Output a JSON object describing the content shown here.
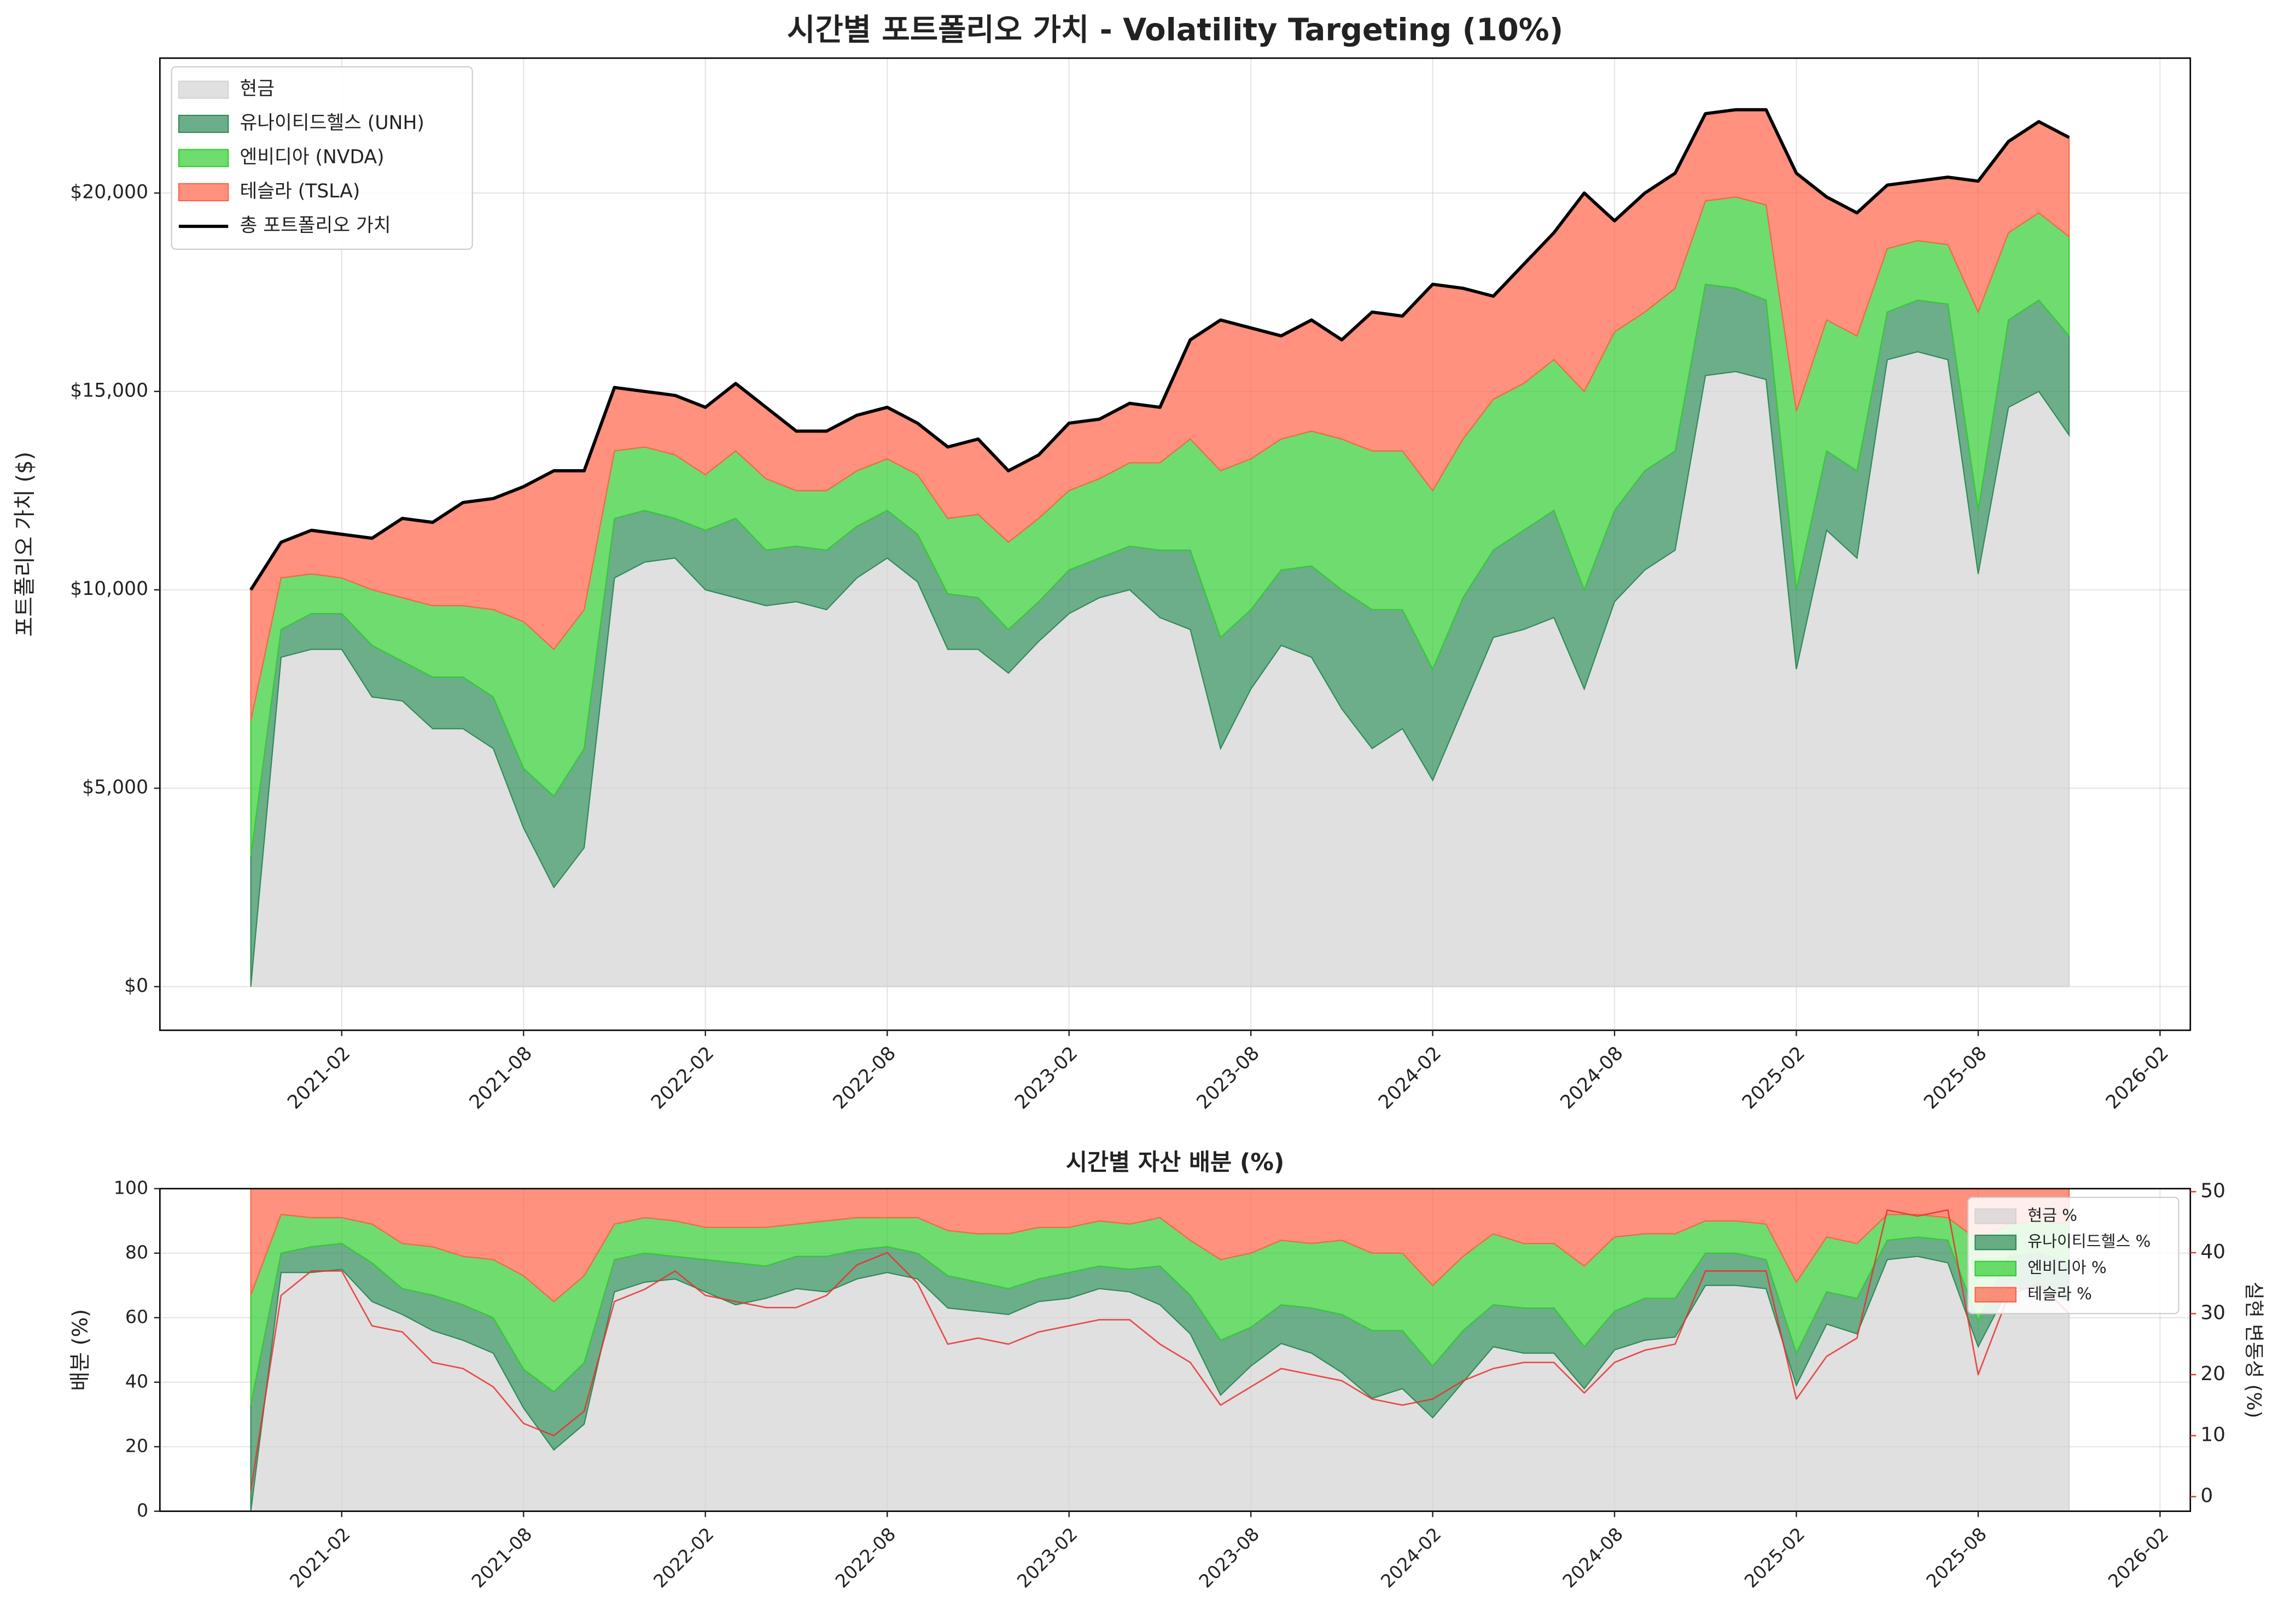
{
  "chart_data": [
    {
      "type": "area",
      "title": "시간별 포트폴리오 가치 - Volatility Targeting (10%)",
      "ylabel": "포트폴리오 가치 ($)",
      "x": [
        "2020-11",
        "2020-12",
        "2021-01",
        "2021-02",
        "2021-03",
        "2021-04",
        "2021-05",
        "2021-06",
        "2021-07",
        "2021-08",
        "2021-09",
        "2021-10",
        "2021-11",
        "2021-12",
        "2022-01",
        "2022-02",
        "2022-03",
        "2022-04",
        "2022-05",
        "2022-06",
        "2022-07",
        "2022-08",
        "2022-09",
        "2022-10",
        "2022-11",
        "2022-12",
        "2023-01",
        "2023-02",
        "2023-03",
        "2023-04",
        "2023-05",
        "2023-06",
        "2023-07",
        "2023-08",
        "2023-09",
        "2023-10",
        "2023-11",
        "2023-12",
        "2024-01",
        "2024-02",
        "2024-03",
        "2024-04",
        "2024-05",
        "2024-06",
        "2024-07",
        "2024-08",
        "2024-09",
        "2024-10",
        "2024-11",
        "2024-12",
        "2025-01",
        "2025-02",
        "2025-03",
        "2025-04",
        "2025-05",
        "2025-06",
        "2025-07",
        "2025-08",
        "2025-09",
        "2025-10",
        "2025-11"
      ],
      "series": [
        {
          "name": "현금",
          "type": "area",
          "color": "#d3d3d3",
          "values": [
            0,
            8300,
            8500,
            8500,
            7300,
            7200,
            6500,
            6500,
            6000,
            4000,
            2500,
            3500,
            10300,
            10700,
            10800,
            10000,
            9800,
            9600,
            9700,
            9500,
            10300,
            10800,
            10200,
            8500,
            8500,
            7900,
            8700,
            9400,
            9800,
            10000,
            9300,
            9000,
            6000,
            7500,
            8600,
            8300,
            7000,
            6000,
            6500,
            5200,
            7000,
            8800,
            9000,
            9300,
            7500,
            9700,
            10500,
            11000,
            15400,
            15500,
            15300,
            8000,
            11500,
            10800,
            15800,
            16000,
            15800,
            10400,
            14600,
            15000,
            13900
          ]
        },
        {
          "name": "유나이티드헬스 (UNH)",
          "type": "area",
          "color": "#2e8b57",
          "values": [
            3300,
            700,
            900,
            900,
            1300,
            1000,
            1300,
            1300,
            1300,
            1500,
            2300,
            2500,
            1500,
            1300,
            1000,
            1500,
            2000,
            1400,
            1400,
            1500,
            1300,
            1200,
            1200,
            1400,
            1300,
            1100,
            1000,
            1100,
            1000,
            1100,
            1700,
            2000,
            2800,
            2000,
            1900,
            2300,
            3000,
            3500,
            3000,
            2800,
            2800,
            2200,
            2500,
            2700,
            2500,
            2300,
            2500,
            2500,
            2300,
            2100,
            2000,
            2000,
            2000,
            2200,
            1200,
            1300,
            1400,
            1600,
            2200,
            2300,
            2500
          ]
        },
        {
          "name": "엔비디아 (NVDA)",
          "type": "area",
          "color": "#32cd32",
          "values": [
            3400,
            1300,
            1000,
            900,
            1400,
            1600,
            1800,
            1800,
            2200,
            3700,
            3700,
            3500,
            1700,
            1600,
            1600,
            1400,
            1700,
            1800,
            1400,
            1500,
            1400,
            1300,
            1500,
            1900,
            2100,
            2200,
            2100,
            2000,
            2000,
            2100,
            2200,
            2800,
            4200,
            3800,
            3300,
            3400,
            3800,
            4000,
            4000,
            4500,
            4000,
            3800,
            3700,
            3800,
            5000,
            4500,
            4000,
            4100,
            2100,
            2300,
            2400,
            4500,
            3300,
            3400,
            1600,
            1500,
            1500,
            5000,
            2200,
            2200,
            2500
          ]
        },
        {
          "name": "테슬라 (TSLA)",
          "type": "area",
          "color": "#ff6347",
          "values": [
            3300,
            900,
            1100,
            1100,
            1300,
            2000,
            2100,
            2600,
            2800,
            3400,
            4500,
            3500,
            1600,
            1400,
            1500,
            1700,
            1700,
            1800,
            1500,
            1500,
            1400,
            1300,
            1300,
            1800,
            1900,
            1800,
            1600,
            1700,
            1500,
            1500,
            1400,
            2500,
            3800,
            3300,
            2600,
            2800,
            2500,
            3500,
            3400,
            5200,
            3800,
            2600,
            3000,
            3200,
            5000,
            2800,
            3000,
            2900,
            2200,
            2200,
            2400,
            6000,
            3100,
            3100,
            1600,
            1500,
            1700,
            3300,
            2300,
            2300,
            2500
          ]
        },
        {
          "name": "총 포트폴리오 가치",
          "type": "line",
          "color": "#000000",
          "values": [
            10000,
            11200,
            11500,
            11400,
            11300,
            11800,
            11700,
            12200,
            12300,
            12600,
            13000,
            13000,
            15100,
            15000,
            14900,
            14600,
            15200,
            14600,
            14000,
            14000,
            14400,
            14600,
            14200,
            13600,
            13800,
            13000,
            13400,
            14200,
            14300,
            14700,
            14600,
            16300,
            16800,
            16600,
            16400,
            16800,
            16300,
            17000,
            16900,
            17700,
            17600,
            17400,
            18200,
            19000,
            20000,
            19300,
            20000,
            20500,
            22000,
            22100,
            22100,
            20500,
            19900,
            19500,
            20200,
            20300,
            20400,
            20300,
            21300,
            21800,
            21400
          ]
        }
      ],
      "xlim": [
        "2020-08",
        "2026-03"
      ],
      "xticks": [
        "2021-02",
        "2021-08",
        "2022-02",
        "2022-08",
        "2023-02",
        "2023-08",
        "2024-02",
        "2024-08",
        "2025-02",
        "2025-08",
        "2026-02"
      ],
      "ylim": [
        -1100,
        23400
      ],
      "yticks": [
        {
          "value": 0,
          "label": "$0"
        },
        {
          "value": 5000,
          "label": "$5,000"
        },
        {
          "value": 10000,
          "label": "$10,000"
        },
        {
          "value": 15000,
          "label": "$15,000"
        },
        {
          "value": 20000,
          "label": "$20,000"
        }
      ],
      "grid": true,
      "legend": "upper left"
    },
    {
      "type": "area",
      "title": "시간별 자산 배분 (%)",
      "ylabel": "배분 (%)",
      "y2label": "실현 변동성 (%)",
      "x": [
        "2020-11",
        "2020-12",
        "2021-01",
        "2021-02",
        "2021-03",
        "2021-04",
        "2021-05",
        "2021-06",
        "2021-07",
        "2021-08",
        "2021-09",
        "2021-10",
        "2021-11",
        "2021-12",
        "2022-01",
        "2022-02",
        "2022-03",
        "2022-04",
        "2022-05",
        "2022-06",
        "2022-07",
        "2022-08",
        "2022-09",
        "2022-10",
        "2022-11",
        "2022-12",
        "2023-01",
        "2023-02",
        "2023-03",
        "2023-04",
        "2023-05",
        "2023-06",
        "2023-07",
        "2023-08",
        "2023-09",
        "2023-10",
        "2023-11",
        "2023-12",
        "2024-01",
        "2024-02",
        "2024-03",
        "2024-04",
        "2024-05",
        "2024-06",
        "2024-07",
        "2024-08",
        "2024-09",
        "2024-10",
        "2024-11",
        "2024-12",
        "2025-01",
        "2025-02",
        "2025-03",
        "2025-04",
        "2025-05",
        "2025-06",
        "2025-07",
        "2025-08",
        "2025-09",
        "2025-10",
        "2025-11"
      ],
      "series": [
        {
          "name": "현금 %",
          "type": "area",
          "color": "#d3d3d3",
          "values": [
            0,
            74,
            74,
            75,
            65,
            61,
            56,
            53,
            49,
            32,
            19,
            27,
            68,
            71,
            72,
            68,
            64,
            66,
            69,
            68,
            72,
            74,
            72,
            63,
            62,
            61,
            65,
            66,
            69,
            68,
            64,
            55,
            36,
            45,
            52,
            49,
            43,
            35,
            38,
            29,
            40,
            51,
            49,
            49,
            38,
            50,
            53,
            54,
            70,
            70,
            69,
            39,
            58,
            55,
            78,
            79,
            77,
            51,
            69,
            69,
            65
          ]
        },
        {
          "name": "유나이티드헬스 %",
          "type": "area",
          "color": "#2e8b57",
          "values": [
            33,
            6,
            8,
            8,
            12,
            8,
            11,
            11,
            11,
            12,
            18,
            19,
            10,
            9,
            7,
            10,
            13,
            10,
            10,
            11,
            9,
            8,
            8,
            10,
            9,
            8,
            7,
            8,
            7,
            7,
            12,
            12,
            17,
            12,
            12,
            14,
            18,
            21,
            18,
            16,
            16,
            13,
            14,
            14,
            13,
            12,
            13,
            12,
            10,
            10,
            9,
            10,
            10,
            11,
            6,
            6,
            7,
            8,
            10,
            11,
            12
          ]
        },
        {
          "name": "엔비디아 %",
          "type": "area",
          "color": "#32cd32",
          "values": [
            34,
            12,
            9,
            8,
            12,
            14,
            15,
            15,
            18,
            29,
            28,
            27,
            11,
            11,
            11,
            10,
            11,
            12,
            10,
            11,
            10,
            9,
            11,
            14,
            15,
            17,
            16,
            14,
            14,
            14,
            15,
            17,
            25,
            23,
            20,
            20,
            23,
            24,
            24,
            25,
            23,
            22,
            20,
            20,
            25,
            23,
            20,
            20,
            10,
            10,
            11,
            22,
            17,
            17,
            8,
            7,
            7,
            25,
            10,
            10,
            12
          ]
        },
        {
          "name": "테슬라 %",
          "type": "area",
          "color": "#ff6347",
          "values": [
            33,
            8,
            9,
            9,
            11,
            17,
            18,
            21,
            22,
            27,
            35,
            27,
            11,
            9,
            10,
            12,
            12,
            12,
            11,
            10,
            9,
            9,
            9,
            13,
            14,
            14,
            12,
            12,
            10,
            11,
            9,
            16,
            22,
            20,
            16,
            17,
            16,
            20,
            20,
            30,
            21,
            14,
            17,
            17,
            24,
            15,
            14,
            14,
            10,
            10,
            11,
            29,
            15,
            17,
            8,
            8,
            9,
            16,
            11,
            10,
            11
          ]
        },
        {
          "type": "line",
          "axis": "y2",
          "color": "#e8302e",
          "values": [
            1,
            33,
            37,
            37,
            28,
            27,
            22,
            21,
            18,
            12,
            10,
            14,
            32,
            34,
            37,
            33,
            32,
            31,
            31,
            33,
            38,
            40,
            35,
            25,
            26,
            25,
            27,
            28,
            29,
            29,
            25,
            22,
            15,
            18,
            21,
            20,
            19,
            16,
            15,
            16,
            19,
            21,
            22,
            22,
            17,
            22,
            24,
            25,
            37,
            37,
            37,
            16,
            23,
            26,
            47,
            46,
            47,
            20,
            33,
            35,
            30
          ]
        }
      ],
      "xlim": [
        "2020-08",
        "2026-03"
      ],
      "xticks": [
        "2021-02",
        "2021-08",
        "2022-02",
        "2022-08",
        "2023-02",
        "2023-08",
        "2024-02",
        "2024-08",
        "2025-02",
        "2025-08",
        "2026-02"
      ],
      "ylim": [
        0,
        100
      ],
      "yticks": [
        0,
        20,
        40,
        60,
        80,
        100
      ],
      "y2lim": [
        -2.4,
        50.5
      ],
      "y2ticks": [
        0,
        10,
        20,
        30,
        40,
        50
      ],
      "grid": true,
      "legend": "upper right"
    }
  ]
}
